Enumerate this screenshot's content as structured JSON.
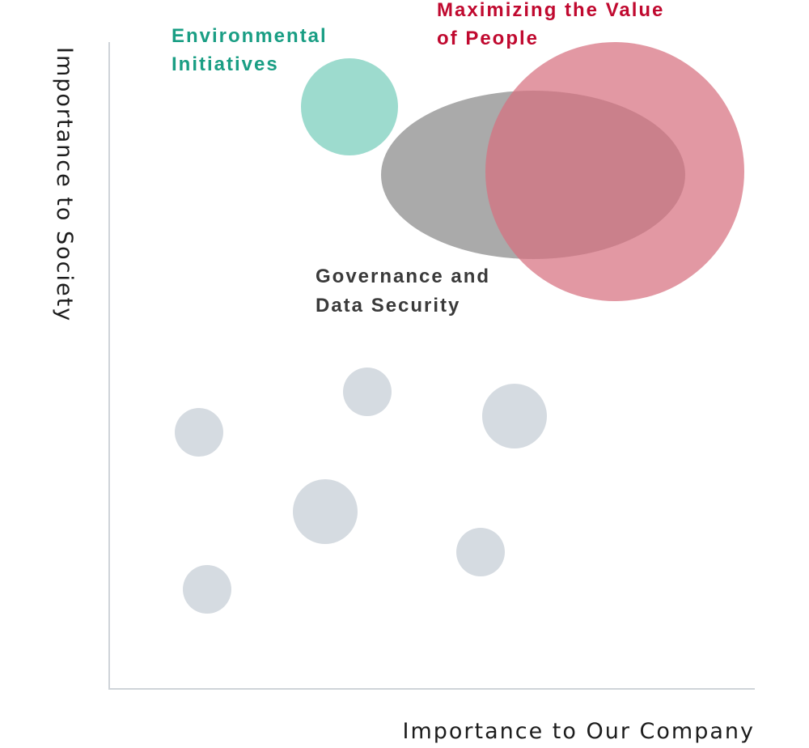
{
  "axes": {
    "x_label": "Importance to Our Company",
    "y_label": "Importance to Society",
    "color": "#cfd4d9"
  },
  "labels": {
    "environmental": [
      "Environmental",
      "Initiatives"
    ],
    "people": [
      "Maximizing the Value",
      "of People"
    ],
    "governance": [
      "Governance and",
      "Data Security"
    ]
  },
  "colors": {
    "environmental": "#7ccfbd",
    "people": "#d7707f",
    "governance": "#8e8e8e",
    "minor": "#d5dbe1",
    "env_text": "#1a9e84",
    "people_text": "#c0092f",
    "gov_text": "#3a3a3a",
    "axis_text": "#1c1c1c"
  }
}
